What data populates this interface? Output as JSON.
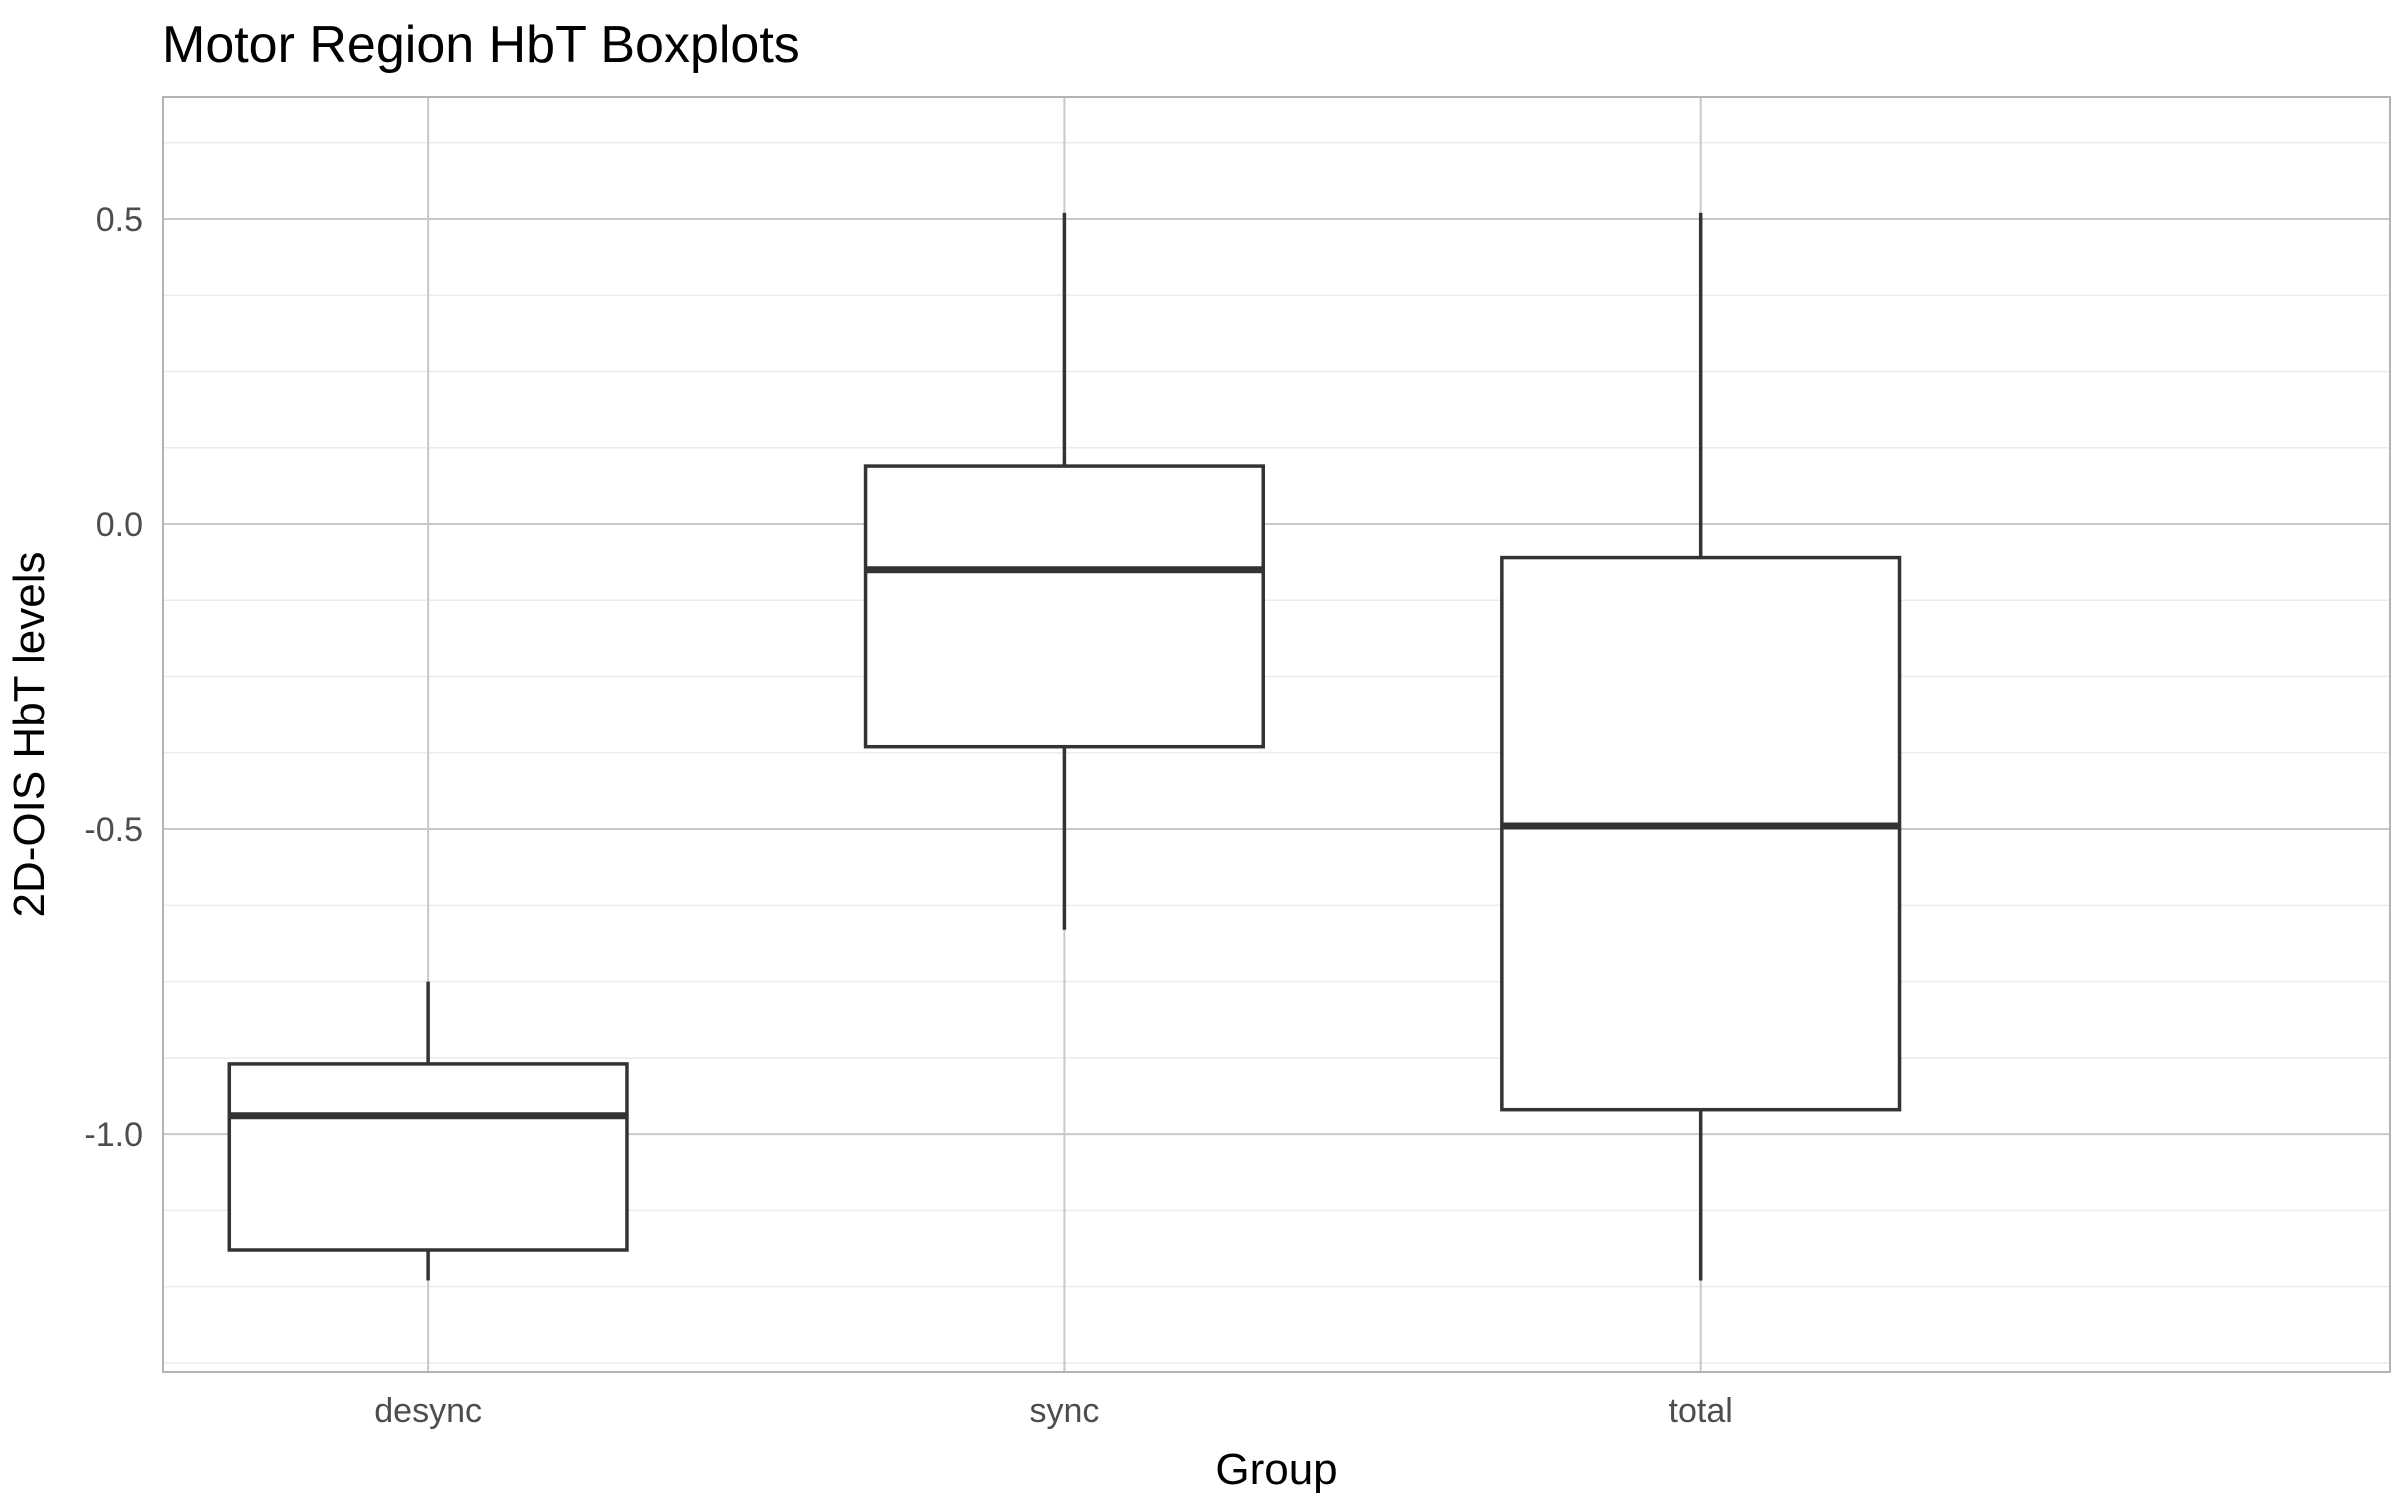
{
  "chart_data": {
    "type": "boxplot",
    "title": "Motor Region HbT Boxplots",
    "xlabel": "Group",
    "ylabel": "2D-OIS HbT levels",
    "categories": [
      "desync",
      "sync",
      "total"
    ],
    "boxes": [
      {
        "category": "desync",
        "whisker_low": -1.24,
        "q1": -1.19,
        "median": -0.97,
        "q3": -0.885,
        "whisker_high": -0.75
      },
      {
        "category": "sync",
        "whisker_low": -0.665,
        "q1": -0.365,
        "median": -0.075,
        "q3": 0.095,
        "whisker_high": 0.51
      },
      {
        "category": "total",
        "whisker_low": -1.24,
        "q1": -0.96,
        "median": -0.495,
        "q3": -0.055,
        "whisker_high": 0.51
      }
    ],
    "ylim": [
      -1.39,
      0.7
    ],
    "yticks": [
      0.5,
      0.0,
      -0.5,
      -1.0
    ],
    "ytick_labels": [
      "0.5",
      "0.0",
      "-0.5",
      "-1.0"
    ],
    "grid": true,
    "colors": {
      "box": "#333333",
      "grid_major": "#c8c8c8",
      "grid_minor": "#ebebeb",
      "panel_border": "#b3b3b3"
    }
  }
}
